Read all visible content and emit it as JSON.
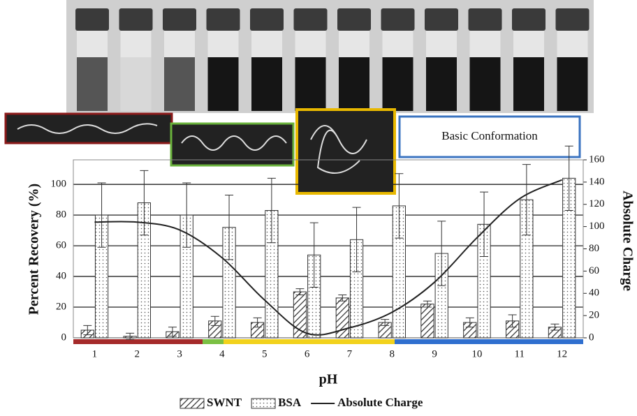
{
  "chart_data": {
    "type": "bar",
    "annotation": "Basic Conformation",
    "categories": [
      "1",
      "2",
      "3",
      "4",
      "5",
      "6",
      "7",
      "8",
      "9",
      "10",
      "11",
      "12"
    ],
    "series": [
      {
        "name": "SWNT",
        "color": "#333333",
        "values": [
          5,
          1,
          4,
          11,
          10,
          30,
          26,
          10,
          22,
          10,
          11,
          7
        ],
        "errors": [
          3,
          2,
          3,
          3,
          3,
          2,
          2,
          2,
          2,
          3,
          4,
          2
        ]
      },
      {
        "name": "BSA",
        "color": "#333333",
        "values": [
          80,
          88,
          80,
          72,
          83,
          54,
          64,
          86,
          55,
          74,
          90,
          104
        ],
        "errors": [
          21,
          21,
          21,
          21,
          21,
          21,
          21,
          21,
          21,
          21,
          23,
          21
        ]
      },
      {
        "name": "Absolute Charge",
        "color": "#222222",
        "axis": "y2",
        "values": [
          104,
          104,
          97,
          72,
          34,
          4,
          9,
          23,
          50,
          90,
          125,
          142
        ]
      }
    ],
    "ylabel": "Percent Recovery (%)",
    "y2label": "Absolute Charge",
    "xlabel": "pH",
    "ylim": [
      0,
      116
    ],
    "yticks": [
      0,
      20,
      40,
      60,
      80,
      100
    ],
    "y2lim": [
      0,
      160
    ],
    "y2ticks": [
      0,
      20,
      40,
      60,
      80,
      100,
      120,
      140,
      160
    ],
    "grid": true
  }
}
